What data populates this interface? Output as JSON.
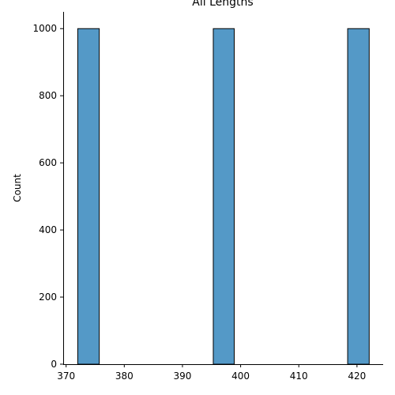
{
  "chart_data": {
    "type": "bar",
    "title": "All Lengths",
    "xlabel": "",
    "ylabel": "Count",
    "bins": [
      {
        "x0": 372.0,
        "x1": 375.7,
        "value": 1000
      },
      {
        "x0": 395.3,
        "x1": 398.9,
        "value": 1000
      },
      {
        "x0": 418.4,
        "x1": 422.1,
        "value": 1000
      }
    ],
    "xlim": [
      369.5,
      424.5
    ],
    "ylim": [
      0,
      1050
    ],
    "xticks": [
      370,
      380,
      390,
      400,
      410,
      420
    ],
    "yticks": [
      0,
      200,
      400,
      600,
      800,
      1000
    ],
    "grid": false,
    "bar_color": "#5499c7",
    "edge_color": "#000000"
  }
}
